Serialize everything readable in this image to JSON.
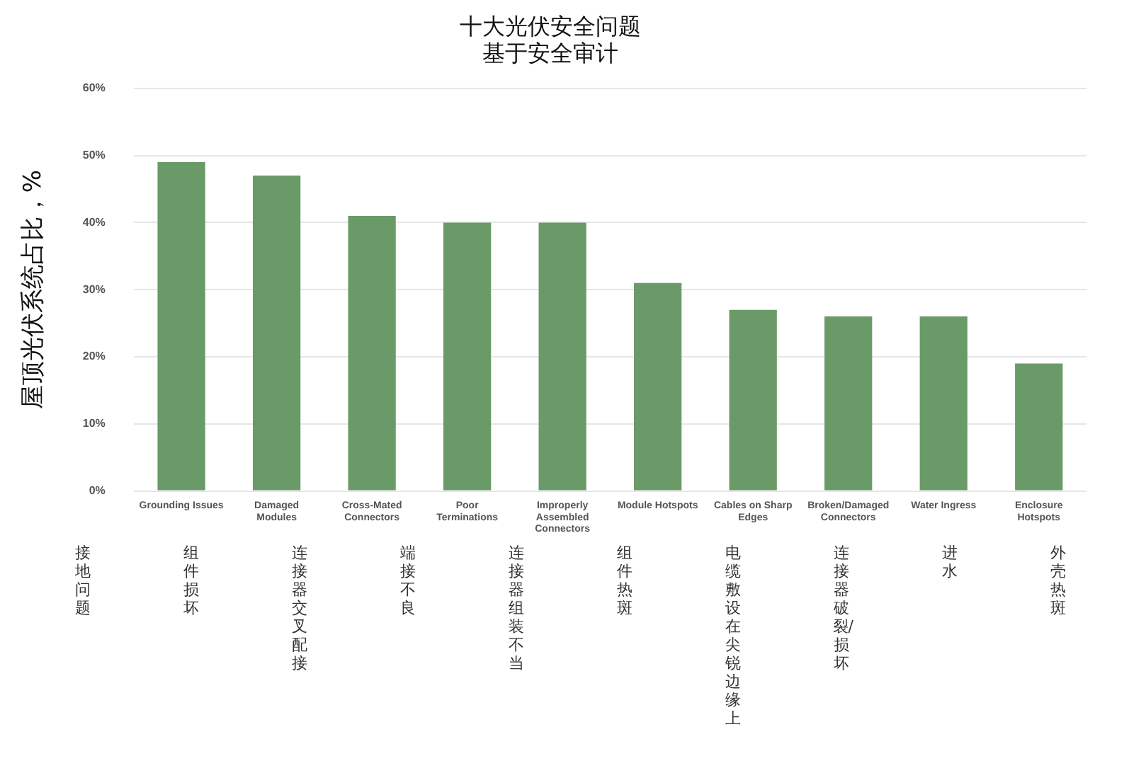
{
  "chart_data": {
    "type": "bar",
    "title": "十大光伏安全问题",
    "subtitle": "基于安全审计",
    "ylabel": "屋顶光伏系统占比，%",
    "categories": [
      "Grounding Issues",
      "Damaged Modules",
      "Cross-Mated Connectors",
      "Poor Terminations",
      "Improperly Assembled Connectors",
      "Module Hotspots",
      "Cables on Sharp Edges",
      "Broken/Damaged Connectors",
      "Water Ingress",
      "Enclosure Hotspots"
    ],
    "values": [
      49,
      47,
      41,
      40,
      40,
      31,
      27,
      26,
      26,
      19
    ],
    "color": "#6a9a68",
    "ylim": [
      0,
      60
    ],
    "yticks": [
      {
        "value": 0,
        "label": "0%"
      },
      {
        "value": 10,
        "label": "10%"
      },
      {
        "value": 20,
        "label": "20%"
      },
      {
        "value": 30,
        "label": "30%"
      },
      {
        "value": 40,
        "label": "40%"
      },
      {
        "value": 50,
        "label": "50%"
      },
      {
        "value": 60,
        "label": "60%"
      }
    ],
    "grid": "y",
    "legend": false,
    "annotations": [
      "接地问题",
      "组件损坏",
      "连接器交叉配接",
      "端接不良",
      "连接器组装不当",
      "组件热斑",
      "电缆敷设在尖锐边缘上",
      "连接器破裂/损坏",
      "进水",
      "外壳热斑"
    ]
  }
}
